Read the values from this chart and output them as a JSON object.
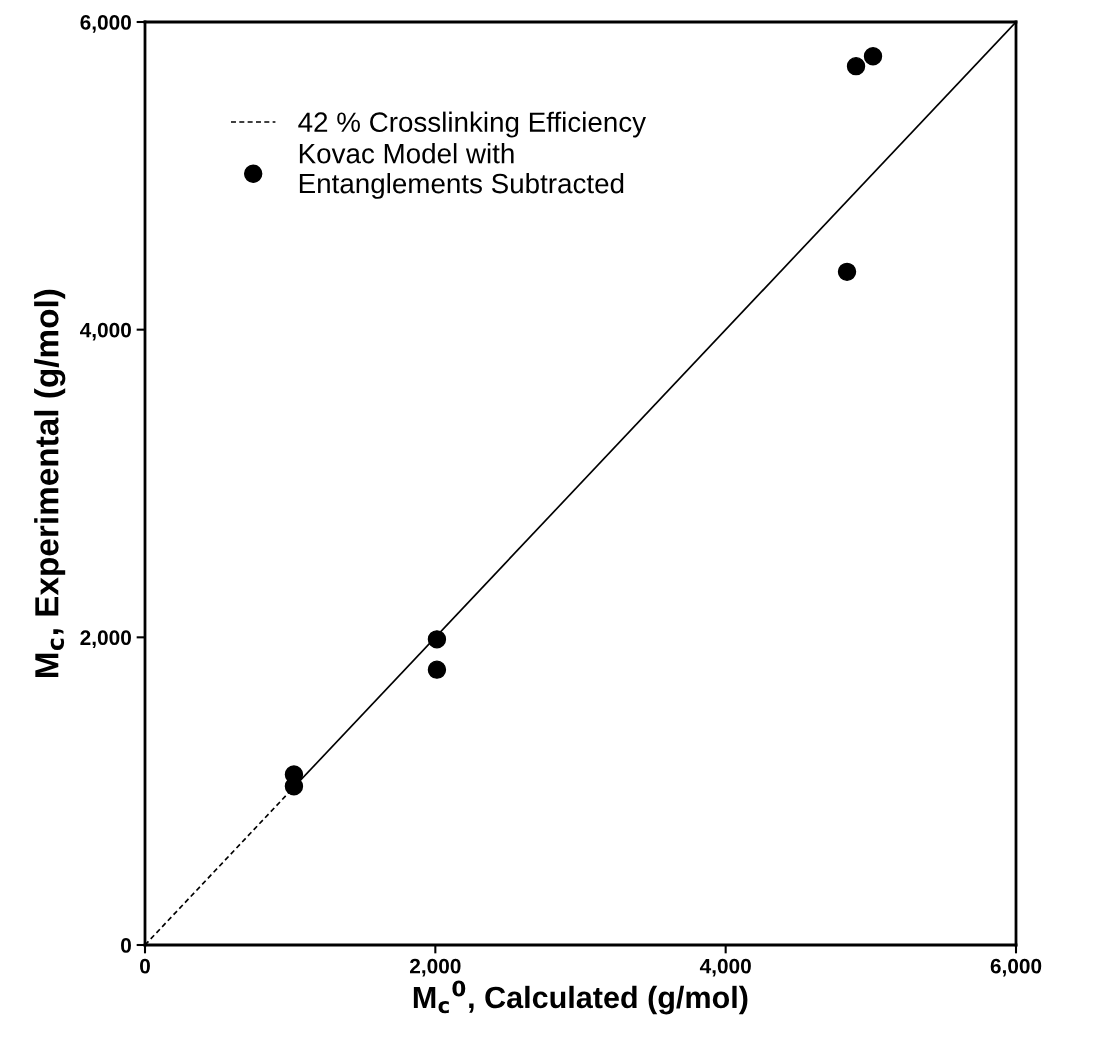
{
  "chart_data": {
    "type": "scatter",
    "xlabel": "M$_{c}$$^{0}$, Calculated (g/mol)",
    "ylabel": "M$_{c}$, Experimental (g/mol)",
    "xlim": [
      0,
      6000
    ],
    "ylim": [
      0,
      6000
    ],
    "xticks": [
      {
        "value": 0,
        "label": "0"
      },
      {
        "value": 2000,
        "label": "2,000"
      },
      {
        "value": 4000,
        "label": "4,000"
      },
      {
        "value": 6000,
        "label": "6,000"
      }
    ],
    "yticks": [
      {
        "value": 0,
        "label": "0"
      },
      {
        "value": 2000,
        "label": "2,000"
      },
      {
        "value": 4000,
        "label": "4,000"
      },
      {
        "value": 6000,
        "label": "6,000"
      }
    ],
    "series": [
      {
        "name": "42 % Crosslinking Efficiency",
        "type": "line",
        "line_style": "dashed",
        "marker": "none",
        "color": "#000000",
        "x": [
          0,
          1000
        ],
        "values": [
          0,
          1000
        ]
      },
      {
        "name": "Kovac Model with\nEntanglements Subtracted",
        "marker": "circle",
        "color": "#000000",
        "x": [
          1026,
          1026,
          2011,
          2011,
          4836,
          4898,
          5015
        ],
        "values": [
          1108,
          1032,
          1987,
          1790,
          4376,
          5713,
          5777
        ]
      },
      {
        "type": "line",
        "line_style": "solid",
        "marker": "none",
        "color": "#000000",
        "x": [
          1000,
          6000
        ],
        "values": [
          1000,
          6000
        ]
      }
    ],
    "grid": false,
    "legend": "top left"
  }
}
